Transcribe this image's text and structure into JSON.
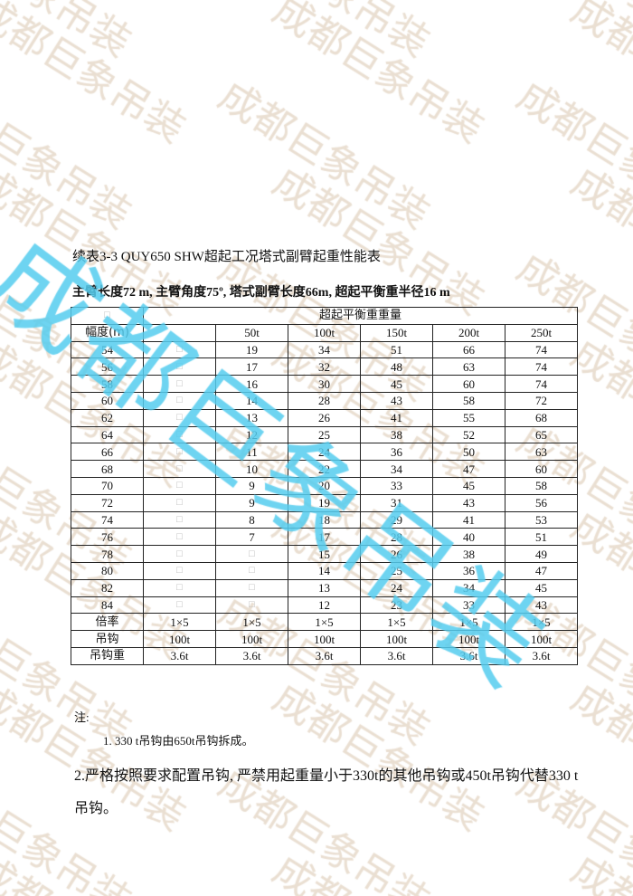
{
  "watermark": {
    "text": "成都巨象吊装",
    "colors": {
      "faint": "#eadfd2",
      "overlay": "#55cdee"
    }
  },
  "title": "续表3-3 QUY650 SHW超起工况塔式副臂起重性能表",
  "subtitle": "主臂长度72 m, 主臂角度75º, 塔式副臂长度66m, 超起平衡重半径16 m",
  "table": {
    "corner": "□",
    "group_header": "超起平衡重重量",
    "header": [
      "幅度(m)",
      "",
      "50t",
      "100t",
      "150t",
      "200t",
      "250t"
    ],
    "rows": [
      [
        "54",
        "□",
        "19",
        "34",
        "51",
        "66",
        "74"
      ],
      [
        "56",
        "□",
        "17",
        "32",
        "48",
        "63",
        "74"
      ],
      [
        "58",
        "□",
        "16",
        "30",
        "45",
        "60",
        "74"
      ],
      [
        "60",
        "□",
        "14",
        "28",
        "43",
        "58",
        "72"
      ],
      [
        "62",
        "□",
        "13",
        "26",
        "41",
        "55",
        "68"
      ],
      [
        "64",
        "□",
        "12",
        "25",
        "38",
        "52",
        "65"
      ],
      [
        "66",
        "□",
        "11",
        "24",
        "36",
        "50",
        "63"
      ],
      [
        "68",
        "□",
        "10",
        "22",
        "34",
        "47",
        "60"
      ],
      [
        "70",
        "□",
        "9",
        "20",
        "33",
        "45",
        "58"
      ],
      [
        "72",
        "□",
        "9",
        "19",
        "31",
        "43",
        "56"
      ],
      [
        "74",
        "□",
        "8",
        "18",
        "29",
        "41",
        "53"
      ],
      [
        "76",
        "□",
        "7",
        "17",
        "28",
        "40",
        "51"
      ],
      [
        "78",
        "□",
        "□",
        "15",
        "26",
        "38",
        "49"
      ],
      [
        "80",
        "□",
        "□",
        "14",
        "25",
        "36",
        "47"
      ],
      [
        "82",
        "□",
        "□",
        "13",
        "24",
        "34",
        "45"
      ],
      [
        "84",
        "□",
        "□",
        "12",
        "23",
        "33",
        "43"
      ],
      [
        "倍率",
        "1×5",
        "1×5",
        "1×5",
        "1×5",
        "1×5",
        "1×5"
      ],
      [
        "吊钩",
        "100t",
        "100t",
        "100t",
        "100t",
        "100t",
        "100t"
      ],
      [
        "吊钩重",
        "3.6t",
        "3.6t",
        "3.6t",
        "3.6t",
        "3.6t",
        "3.6t"
      ]
    ]
  },
  "notes": {
    "heading": "注:",
    "items": [
      "1. 330 t吊钩由650t吊钩拆成。",
      "2.严格按照要求配置吊钩, 严禁用起重量小于330t的其他吊钩或450t吊钩代替330 t吊钩。"
    ]
  }
}
